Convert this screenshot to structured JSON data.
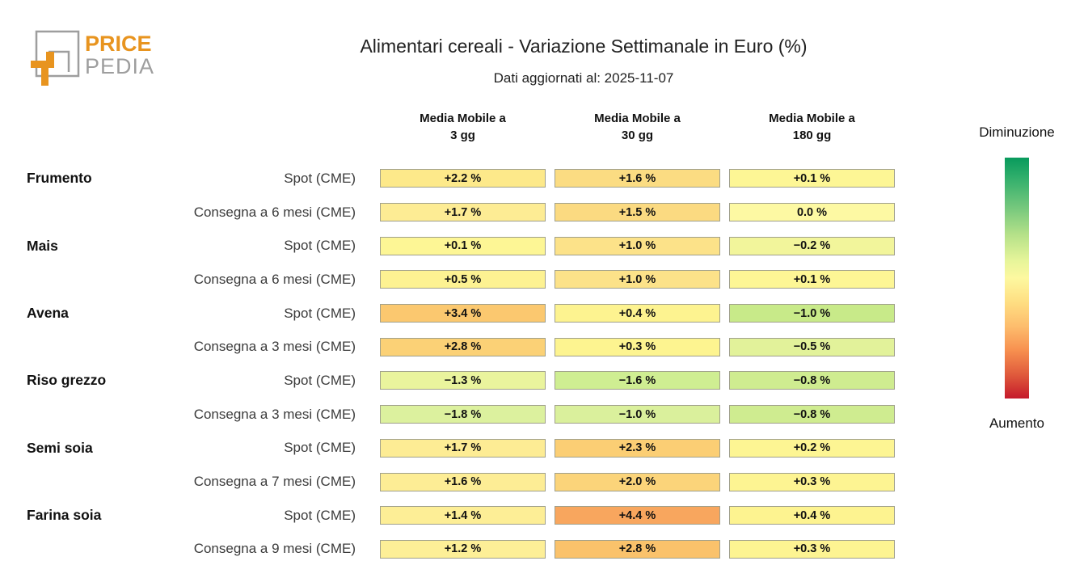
{
  "logo": {
    "price": "PRICE",
    "pedia": "PEDIA",
    "orange": "#e8941f",
    "gray": "#9e9e9e"
  },
  "header": {
    "title": "Alimentari cereali - Variazione Settimanale in Euro (%)",
    "subtitle": "Dati aggiornati al: 2025-11-07"
  },
  "columns": [
    {
      "line1": "Media Mobile a",
      "line2": "3 gg"
    },
    {
      "line1": "Media Mobile a",
      "line2": "30 gg"
    },
    {
      "line1": "Media Mobile a",
      "line2": "180 gg"
    }
  ],
  "legend": {
    "top_label": "Diminuzione",
    "bottom_label": "Aumento",
    "gradient_stops": [
      "#089a5c 0%",
      "#2fae6b 8%",
      "#71c67c 20%",
      "#b5e189 32%",
      "#e7f59a 43%",
      "#fdf8a0 50%",
      "#fede82 60%",
      "#fdbd6d 70%",
      "#f7904f 80%",
      "#e05b3c 90%",
      "#c51a2b 100%"
    ]
  },
  "rows": [
    {
      "group": "Frumento",
      "label": "Spot (CME)",
      "cells": [
        {
          "value": "+2.2 %",
          "color": "#fde98a"
        },
        {
          "value": "+1.6 %",
          "color": "#fbdc82"
        },
        {
          "value": "+0.1 %",
          "color": "#fdf695"
        }
      ]
    },
    {
      "group": "",
      "label": "Consegna a 6 mesi (CME)",
      "cells": [
        {
          "value": "+1.7 %",
          "color": "#fdec94"
        },
        {
          "value": "+1.5 %",
          "color": "#fbda81"
        },
        {
          "value": "0.0 %",
          "color": "#fdf9a3"
        }
      ]
    },
    {
      "group": "Mais",
      "label": "Spot (CME)",
      "cells": [
        {
          "value": "+0.1 %",
          "color": "#fdf695"
        },
        {
          "value": "+1.0 %",
          "color": "#fce289"
        },
        {
          "value": "−0.2 %",
          "color": "#f2f59b"
        }
      ]
    },
    {
      "group": "",
      "label": "Consegna a 6 mesi (CME)",
      "cells": [
        {
          "value": "+0.5 %",
          "color": "#fdf292"
        },
        {
          "value": "+1.0 %",
          "color": "#fce289"
        },
        {
          "value": "+0.1 %",
          "color": "#fdf695"
        }
      ]
    },
    {
      "group": "Avena",
      "label": "Spot (CME)",
      "cells": [
        {
          "value": "+3.4 %",
          "color": "#fbc86f"
        },
        {
          "value": "+0.4 %",
          "color": "#fdf390"
        },
        {
          "value": "−1.0 %",
          "color": "#c8ea89"
        }
      ]
    },
    {
      "group": "",
      "label": "Consegna a 3 mesi (CME)",
      "cells": [
        {
          "value": "+2.8 %",
          "color": "#fbd176"
        },
        {
          "value": "+0.3 %",
          "color": "#fdf490"
        },
        {
          "value": "−0.5 %",
          "color": "#e2f29a"
        }
      ]
    },
    {
      "group": "Riso grezzo",
      "label": "Spot (CME)",
      "cells": [
        {
          "value": "−1.3 %",
          "color": "#eaf49d"
        },
        {
          "value": "−1.6 %",
          "color": "#cfee92"
        },
        {
          "value": "−0.8 %",
          "color": "#cfec90"
        }
      ]
    },
    {
      "group": "",
      "label": "Consegna a 3 mesi (CME)",
      "cells": [
        {
          "value": "−1.8 %",
          "color": "#dcf19e"
        },
        {
          "value": "−1.0 %",
          "color": "#daf09c"
        },
        {
          "value": "−0.8 %",
          "color": "#cfec90"
        }
      ]
    },
    {
      "group": "Semi soia",
      "label": "Spot (CME)",
      "cells": [
        {
          "value": "+1.7 %",
          "color": "#fdec94"
        },
        {
          "value": "+2.3 %",
          "color": "#fbce74"
        },
        {
          "value": "+0.2 %",
          "color": "#fdf593"
        }
      ]
    },
    {
      "group": "",
      "label": "Consegna a 7 mesi (CME)",
      "cells": [
        {
          "value": "+1.6 %",
          "color": "#fded95"
        },
        {
          "value": "+2.0 %",
          "color": "#fbd47a"
        },
        {
          "value": "+0.3 %",
          "color": "#fdf492"
        }
      ]
    },
    {
      "group": "Farina soia",
      "label": "Spot (CME)",
      "cells": [
        {
          "value": "+1.4 %",
          "color": "#fdee96"
        },
        {
          "value": "+4.4 %",
          "color": "#f8a65e"
        },
        {
          "value": "+0.4 %",
          "color": "#fdf390"
        }
      ]
    },
    {
      "group": "",
      "label": "Consegna a 9 mesi (CME)",
      "cells": [
        {
          "value": "+1.2 %",
          "color": "#fdef97"
        },
        {
          "value": "+2.8 %",
          "color": "#fac26b"
        },
        {
          "value": "+0.3 %",
          "color": "#fdf492"
        }
      ]
    }
  ],
  "chart_data": {
    "type": "heatmap",
    "title": "Alimentari cereali - Variazione Settimanale in Euro (%)",
    "subtitle": "Dati aggiornati al: 2025-11-07",
    "columns": [
      "Media Mobile a 3 gg",
      "Media Mobile a 30 gg",
      "Media Mobile a 180 gg"
    ],
    "unit": "%",
    "rows": [
      {
        "group": "Frumento",
        "series": "Spot (CME)",
        "values": [
          2.2,
          1.6,
          0.1
        ]
      },
      {
        "group": "Frumento",
        "series": "Consegna a 6 mesi (CME)",
        "values": [
          1.7,
          1.5,
          0.0
        ]
      },
      {
        "group": "Mais",
        "series": "Spot (CME)",
        "values": [
          0.1,
          1.0,
          -0.2
        ]
      },
      {
        "group": "Mais",
        "series": "Consegna a 6 mesi (CME)",
        "values": [
          0.5,
          1.0,
          0.1
        ]
      },
      {
        "group": "Avena",
        "series": "Spot (CME)",
        "values": [
          3.4,
          0.4,
          -1.0
        ]
      },
      {
        "group": "Avena",
        "series": "Consegna a 3 mesi (CME)",
        "values": [
          2.8,
          0.3,
          -0.5
        ]
      },
      {
        "group": "Riso grezzo",
        "series": "Spot (CME)",
        "values": [
          -1.3,
          -1.6,
          -0.8
        ]
      },
      {
        "group": "Riso grezzo",
        "series": "Consegna a 3 mesi (CME)",
        "values": [
          -1.8,
          -1.0,
          -0.8
        ]
      },
      {
        "group": "Semi soia",
        "series": "Spot (CME)",
        "values": [
          1.7,
          2.3,
          0.2
        ]
      },
      {
        "group": "Semi soia",
        "series": "Consegna a 7 mesi (CME)",
        "values": [
          1.6,
          2.0,
          0.3
        ]
      },
      {
        "group": "Farina soia",
        "series": "Spot (CME)",
        "values": [
          1.4,
          4.4,
          0.4
        ]
      },
      {
        "group": "Farina soia",
        "series": "Consegna a 9 mesi (CME)",
        "values": [
          1.2,
          2.8,
          0.3
        ]
      }
    ],
    "legend": {
      "colormap": "green-yellow-red",
      "top_label": "Diminuzione",
      "bottom_label": "Aumento",
      "legend_position": "right"
    }
  }
}
